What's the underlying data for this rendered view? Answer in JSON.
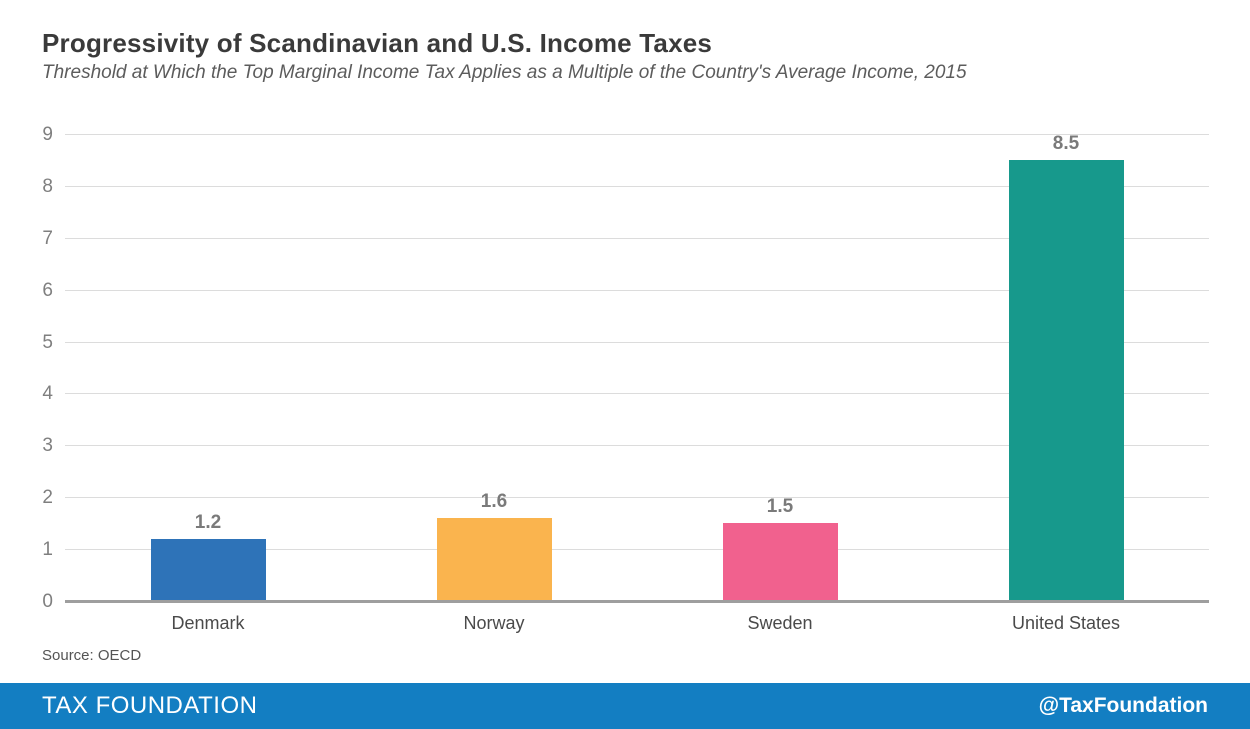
{
  "header": {
    "title": "Progressivity of Scandinavian and U.S. Income Taxes",
    "subtitle": "Threshold at Which the Top Marginal Income Tax Applies as a Multiple of the Country's Average Income, 2015"
  },
  "chart_data": {
    "type": "bar",
    "title": "Progressivity of Scandinavian and U.S. Income Taxes",
    "subtitle": "Threshold at Which the Top Marginal Income Tax Applies as a Multiple of the Country's Average Income, 2015",
    "categories": [
      "Denmark",
      "Norway",
      "Sweden",
      "United States"
    ],
    "values": [
      1.2,
      1.6,
      1.5,
      8.5
    ],
    "value_labels": [
      "1.2",
      "1.6",
      "1.5",
      "8.5"
    ],
    "bar_colors": [
      "#2E73B8",
      "#FAB44E",
      "#F1618E",
      "#17998C"
    ],
    "xlabel": "",
    "ylabel": "",
    "ylim": [
      0,
      9
    ],
    "yticks": [
      0,
      1,
      2,
      3,
      4,
      5,
      6,
      7,
      8,
      9
    ],
    "grid": true,
    "legend": false
  },
  "source": {
    "label": "Source: OECD"
  },
  "footer": {
    "brand": "TAX FOUNDATION",
    "social": "@TaxFoundation",
    "background_color": "#137EC2"
  },
  "colors": {
    "gridline": "#dcdcdc",
    "baseline": "#9e9e9e",
    "axis_text": "#7f7f7f",
    "title_text": "#3a3a3a"
  }
}
